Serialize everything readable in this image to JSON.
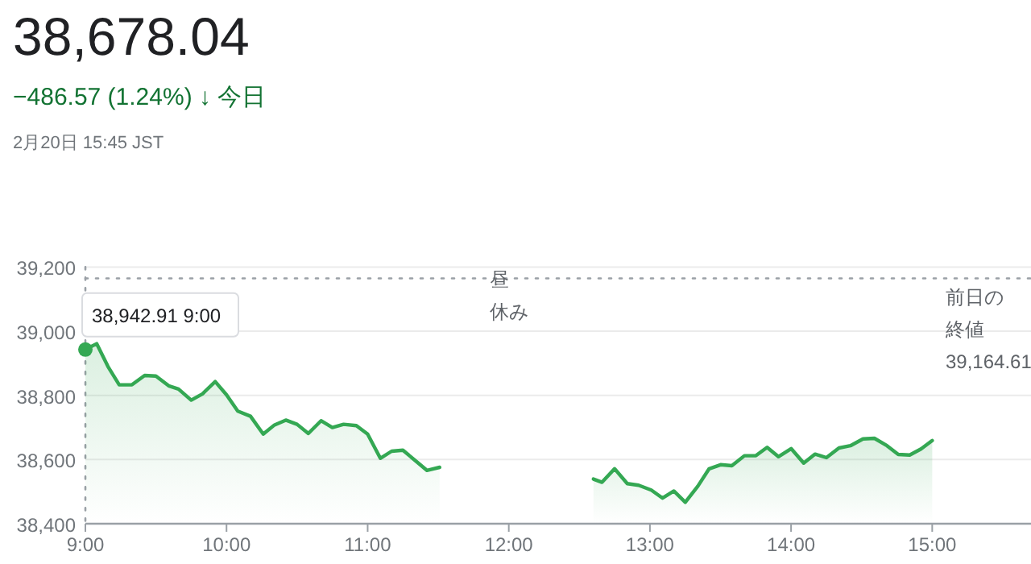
{
  "chart_data": {
    "type": "area",
    "title": "38,678.04",
    "subtitle": "−486.57 (1.24%) ↓ 今日",
    "annotations": [
      "2月20日 15:45 JST",
      {
        "text": "38,942.91  9:00",
        "x": 9,
        "y": 38942.91
      },
      "昼休み"
    ],
    "xlim": [
      9,
      15.7
    ],
    "ylim": [
      38400,
      39200
    ],
    "xticks": [
      {
        "value": 9,
        "label": "9:00"
      },
      {
        "value": 10,
        "label": "10:00"
      },
      {
        "value": 11,
        "label": "11:00"
      },
      {
        "value": 12,
        "label": "12:00"
      },
      {
        "value": 13,
        "label": "13:00"
      },
      {
        "value": 14,
        "label": "14:00"
      },
      {
        "value": 15,
        "label": "15:00"
      }
    ],
    "yticks": [
      {
        "value": 38400,
        "label": "38,400"
      },
      {
        "value": 38600,
        "label": "38,600"
      },
      {
        "value": 38800,
        "label": "38,800"
      },
      {
        "value": 39000,
        "label": "39,000"
      },
      {
        "value": 39200,
        "label": "39,200"
      }
    ],
    "grid": "y",
    "marker": "none",
    "line_style": "solid",
    "ref_lines": [
      {
        "axis": "y",
        "value": 39164.61,
        "label": "前日の終値39,164.61",
        "line_style": "dotted",
        "color": "#9aa0a6"
      },
      {
        "axis": "x",
        "value": 9,
        "line_style": "dotted",
        "color": "#9aa0a6"
      }
    ],
    "series": [
      {
        "color": "#34a853",
        "x": [
          9,
          9.08,
          9.16,
          9.24,
          9.33,
          9.42,
          9.5,
          9.59,
          9.66,
          9.75,
          9.83,
          9.92,
          10,
          10.08,
          10.17,
          10.26,
          10.34,
          10.42,
          10.5,
          10.58,
          10.67,
          10.75,
          10.83,
          10.92,
          11,
          11.09,
          11.17,
          11.25,
          11.34,
          11.42,
          11.51
        ],
        "values": [
          38943,
          38961,
          38890,
          38833,
          38833,
          38862,
          38860,
          38830,
          38820,
          38785,
          38805,
          38843,
          38802,
          38751,
          38735,
          38679,
          38708,
          38723,
          38710,
          38681,
          38721,
          38700,
          38710,
          38706,
          38679,
          38604,
          38626,
          38629,
          38596,
          38566,
          38576
        ]
      },
      {
        "color": "#34a853",
        "x": [
          12.6,
          12.66,
          12.75,
          12.84,
          12.92,
          13.01,
          13.09,
          13.17,
          13.25,
          13.34,
          13.42,
          13.5,
          13.58,
          13.67,
          13.75,
          13.83,
          13.91,
          14,
          14.09,
          14.17,
          14.25,
          14.34,
          14.42,
          14.51,
          14.59,
          14.68,
          14.76,
          14.84,
          14.92,
          15
        ],
        "values": [
          38539,
          38529,
          38571,
          38525,
          38520,
          38505,
          38480,
          38502,
          38467,
          38517,
          38571,
          38584,
          38581,
          38612,
          38612,
          38638,
          38609,
          38634,
          38589,
          38617,
          38606,
          38636,
          38643,
          38664,
          38666,
          38643,
          38616,
          38614,
          38633,
          38659
        ]
      },
      {
        "type": "scatter",
        "marker": "circle",
        "color": "#34a853",
        "x": [
          9
        ],
        "values": [
          38942.91
        ]
      }
    ]
  }
}
